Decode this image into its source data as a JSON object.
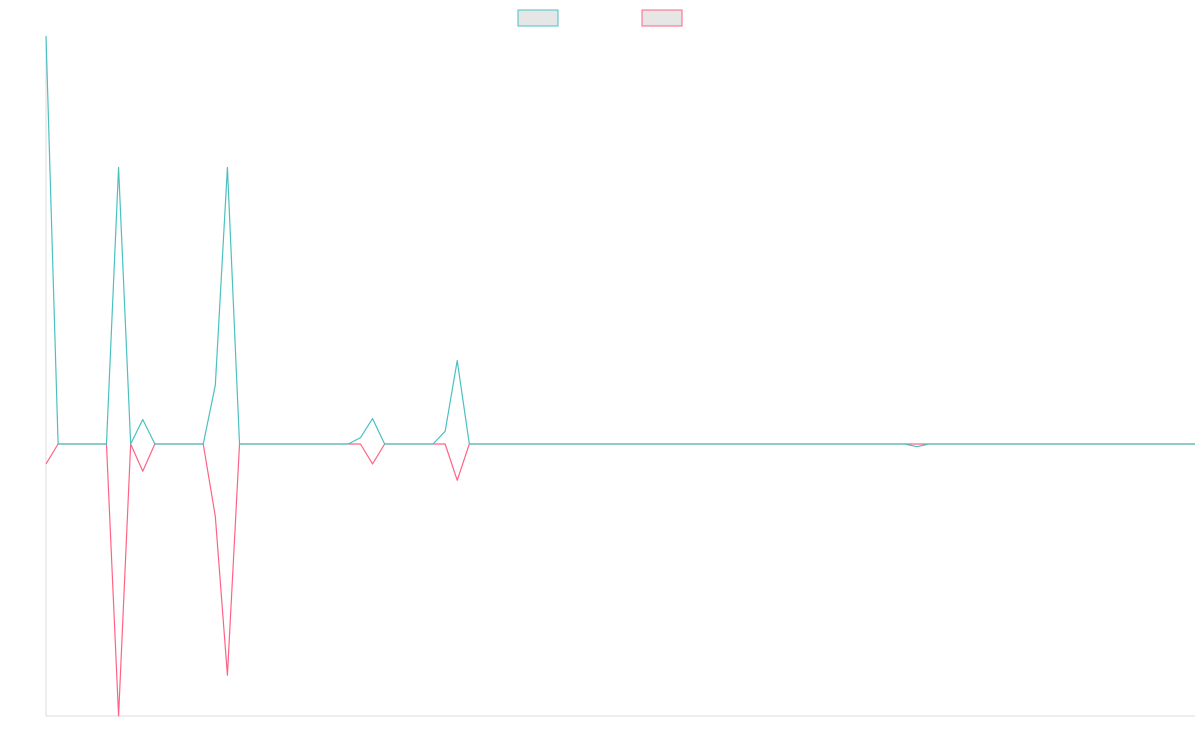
{
  "chart_data": {
    "type": "line",
    "x_count": 96,
    "ylim": [
      -30,
      45
    ],
    "grid": false,
    "legend_position": "top-center",
    "series": [
      {
        "color": "#4bc0c0",
        "values": [
          45,
          0,
          0,
          0,
          0,
          0,
          30.5,
          0,
          2.7,
          0,
          0,
          0,
          0,
          0,
          6.5,
          30.5,
          0,
          0,
          0,
          0,
          0,
          0,
          0,
          0,
          0,
          0,
          0.7,
          2.8,
          0,
          0,
          0,
          0,
          0,
          1.4,
          9.2,
          0,
          0,
          0,
          0,
          0,
          0,
          0,
          0,
          0,
          0,
          0,
          0,
          0,
          0,
          0,
          0,
          0,
          0,
          0,
          0,
          0,
          0,
          0,
          0,
          0,
          0,
          0,
          0,
          0,
          0,
          0,
          0,
          0,
          0,
          0,
          0,
          0,
          -0.3,
          0,
          0,
          0,
          0,
          0,
          0,
          0,
          0,
          0,
          0,
          0,
          0,
          0,
          0,
          0,
          0,
          0,
          0,
          0,
          0,
          0,
          0,
          0
        ]
      },
      {
        "color": "#ff6384",
        "values": [
          -2.2,
          0,
          0,
          0,
          0,
          0,
          -30,
          0,
          -3.0,
          0,
          0,
          0,
          0,
          0,
          -8.0,
          -25.5,
          0,
          0,
          0,
          0,
          0,
          0,
          0,
          0,
          0,
          0,
          0,
          -2.2,
          0,
          0,
          0,
          0,
          0,
          0,
          -4.0,
          0,
          0,
          0,
          0,
          0,
          0,
          0,
          0,
          0,
          0,
          0,
          0,
          0,
          0,
          0,
          0,
          0,
          0,
          0,
          0,
          0,
          0,
          0,
          0,
          0,
          0,
          0,
          0,
          0,
          0,
          0,
          0,
          0,
          0,
          0,
          0,
          0,
          0,
          0,
          0,
          0,
          0,
          0,
          0,
          0,
          0,
          0,
          0,
          0,
          0,
          0,
          0,
          0,
          0,
          0,
          0,
          0,
          0,
          0,
          0,
          0
        ]
      }
    ]
  }
}
